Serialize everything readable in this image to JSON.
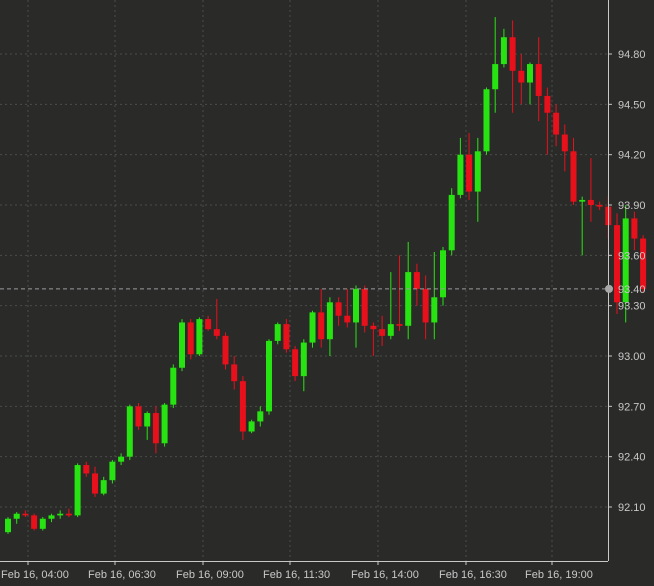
{
  "chart_data": {
    "type": "candlestick",
    "x_tick_labels": [
      "Feb 16, 04:00",
      "Feb 16, 06:30",
      "Feb 16, 09:00",
      "Feb 16, 11:30",
      "Feb 16, 14:00",
      "Feb 16, 16:30",
      "Feb 16, 19:00"
    ],
    "y_tick_labels": [
      "92.10",
      "92.40",
      "92.70",
      "93.00",
      "93.30",
      "93.60",
      "93.90",
      "94.20",
      "94.50",
      "94.80"
    ],
    "y_range": [
      91.8,
      95.1
    ],
    "current_price": "93.40",
    "grid": true,
    "candles": [
      [
        91.95,
        92.04,
        91.94,
        92.03
      ],
      [
        92.03,
        92.07,
        92.0,
        92.06
      ],
      [
        92.06,
        92.08,
        92.04,
        92.05
      ],
      [
        92.05,
        92.06,
        91.96,
        91.97
      ],
      [
        91.97,
        92.04,
        91.96,
        92.03
      ],
      [
        92.03,
        92.06,
        92.01,
        92.05
      ],
      [
        92.05,
        92.08,
        92.03,
        92.06
      ],
      [
        92.06,
        92.09,
        92.04,
        92.05
      ],
      [
        92.05,
        92.36,
        92.04,
        92.35
      ],
      [
        92.35,
        92.37,
        92.28,
        92.3
      ],
      [
        92.3,
        92.34,
        92.16,
        92.18
      ],
      [
        92.18,
        92.28,
        92.17,
        92.26
      ],
      [
        92.26,
        92.38,
        92.24,
        92.37
      ],
      [
        92.37,
        92.42,
        92.35,
        92.4
      ],
      [
        92.4,
        92.71,
        92.38,
        92.7
      ],
      [
        92.7,
        92.72,
        92.56,
        92.58
      ],
      [
        92.58,
        92.67,
        92.5,
        92.66
      ],
      [
        92.66,
        92.7,
        92.42,
        92.48
      ],
      [
        92.48,
        92.72,
        92.46,
        92.71
      ],
      [
        92.71,
        92.95,
        92.69,
        92.93
      ],
      [
        92.93,
        93.22,
        92.91,
        93.2
      ],
      [
        93.2,
        93.22,
        92.98,
        93.01
      ],
      [
        93.01,
        93.23,
        93.0,
        93.22
      ],
      [
        93.22,
        93.24,
        93.15,
        93.16
      ],
      [
        93.16,
        93.34,
        93.1,
        93.12
      ],
      [
        93.12,
        93.14,
        92.92,
        92.95
      ],
      [
        92.95,
        93.0,
        92.8,
        92.85
      ],
      [
        92.85,
        92.88,
        92.5,
        92.55
      ],
      [
        92.55,
        92.62,
        92.54,
        92.61
      ],
      [
        92.61,
        92.7,
        92.58,
        92.67
      ],
      [
        92.67,
        93.1,
        92.65,
        93.09
      ],
      [
        93.09,
        93.2,
        93.07,
        93.19
      ],
      [
        93.19,
        93.22,
        93.02,
        93.04
      ],
      [
        93.04,
        93.06,
        92.85,
        92.88
      ],
      [
        92.88,
        93.1,
        92.79,
        93.08
      ],
      [
        93.08,
        93.27,
        93.05,
        93.26
      ],
      [
        93.26,
        93.4,
        93.05,
        93.1
      ],
      [
        93.1,
        93.35,
        93.0,
        93.32
      ],
      [
        93.32,
        93.35,
        93.18,
        93.24
      ],
      [
        93.24,
        93.4,
        93.17,
        93.2
      ],
      [
        93.2,
        93.42,
        93.05,
        93.4
      ],
      [
        93.4,
        93.42,
        93.14,
        93.18
      ],
      [
        93.18,
        93.2,
        93.0,
        93.16
      ],
      [
        93.16,
        93.24,
        93.06,
        93.12
      ],
      [
        93.12,
        93.5,
        93.1,
        93.19
      ],
      [
        93.19,
        93.6,
        93.15,
        93.18
      ],
      [
        93.18,
        93.68,
        93.1,
        93.5
      ],
      [
        93.5,
        93.55,
        93.3,
        93.4
      ],
      [
        93.4,
        93.48,
        93.1,
        93.2
      ],
      [
        93.2,
        93.62,
        93.1,
        93.35
      ],
      [
        93.35,
        93.65,
        93.3,
        93.63
      ],
      [
        93.63,
        94.0,
        93.6,
        93.96
      ],
      [
        93.96,
        94.3,
        93.94,
        94.2
      ],
      [
        94.2,
        94.33,
        93.93,
        93.98
      ],
      [
        93.98,
        94.3,
        93.8,
        94.22
      ],
      [
        94.22,
        94.6,
        94.2,
        94.59
      ],
      [
        94.59,
        95.02,
        94.45,
        94.74
      ],
      [
        94.74,
        94.95,
        94.72,
        94.9
      ],
      [
        94.9,
        95.0,
        94.45,
        94.7
      ],
      [
        94.7,
        94.8,
        94.5,
        94.63
      ],
      [
        94.63,
        94.75,
        94.5,
        94.74
      ],
      [
        94.74,
        94.9,
        94.4,
        94.55
      ],
      [
        94.55,
        94.6,
        94.2,
        94.45
      ],
      [
        94.45,
        94.5,
        94.25,
        94.32
      ],
      [
        94.32,
        94.38,
        94.1,
        94.22
      ],
      [
        94.22,
        94.3,
        93.9,
        93.92
      ],
      [
        93.92,
        93.95,
        93.6,
        93.93
      ],
      [
        93.93,
        94.18,
        93.8,
        93.9
      ],
      [
        93.9,
        93.92,
        93.87,
        93.89
      ],
      [
        93.89,
        93.95,
        93.7,
        93.78
      ],
      [
        93.78,
        93.85,
        93.25,
        93.32
      ],
      [
        93.32,
        93.9,
        93.2,
        93.82
      ],
      [
        93.82,
        93.86,
        93.63,
        93.7
      ],
      [
        93.7,
        93.72,
        93.38,
        93.4
      ]
    ]
  }
}
